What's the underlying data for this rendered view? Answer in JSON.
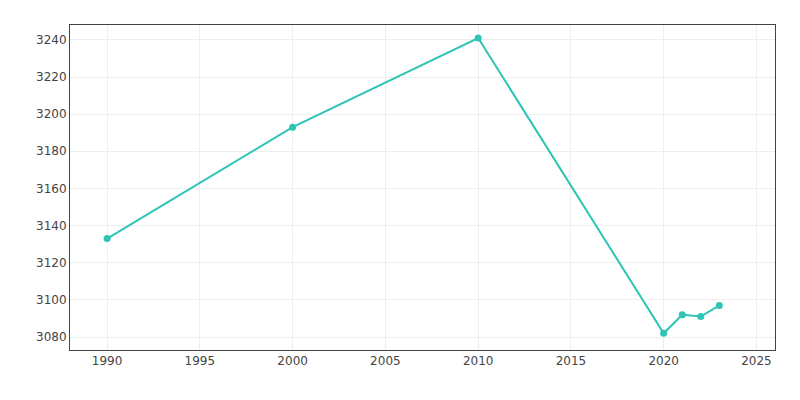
{
  "chart_data": {
    "type": "line",
    "x": [
      1990,
      2000,
      2010,
      2020,
      2021,
      2022,
      2023
    ],
    "values": [
      3133,
      3193,
      3241,
      3082,
      3092,
      3091,
      3097
    ],
    "color": "#2ec4b6",
    "marker": "circle",
    "line_style": "solid",
    "xlim": [
      1988,
      2026
    ],
    "xticks": [
      1990,
      1995,
      2000,
      2005,
      2010,
      2015,
      2020,
      2025
    ],
    "ylim": [
      3073,
      3248
    ],
    "yticks": [
      3080,
      3100,
      3120,
      3140,
      3160,
      3180,
      3200,
      3220,
      3240
    ],
    "grid": true
  }
}
